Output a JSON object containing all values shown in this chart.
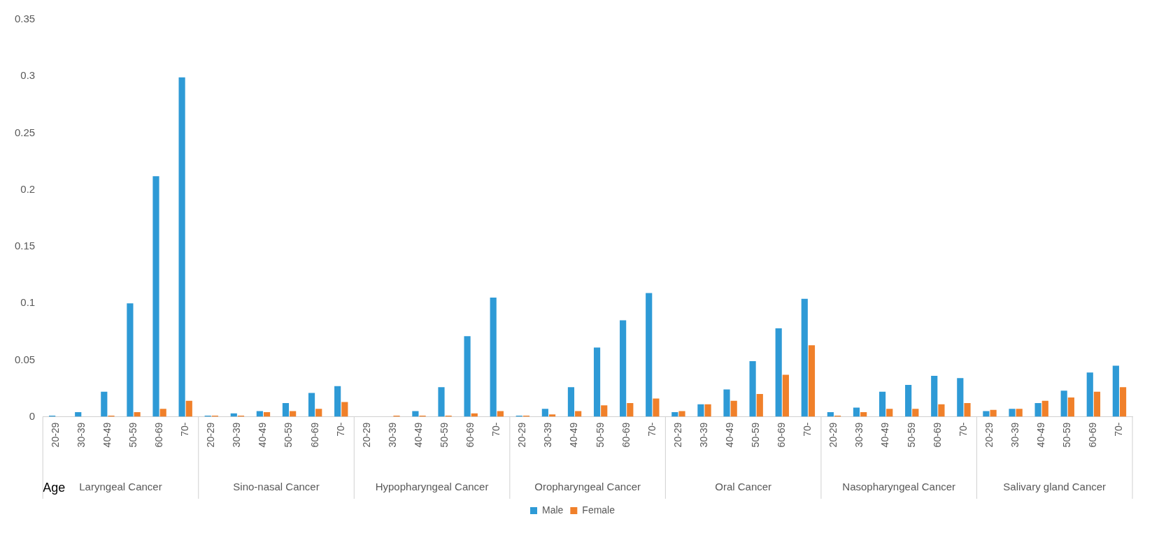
{
  "chart_data": {
    "type": "bar",
    "categories": [
      "20-29",
      "30-39",
      "40-49",
      "50-59",
      "60-69",
      "70-",
      "20-29",
      "30-39",
      "40-49",
      "50-59",
      "60-69",
      "70-",
      "20-29",
      "30-39",
      "40-49",
      "50-59",
      "60-69",
      "70-",
      "20-29",
      "30-39",
      "40-49",
      "50-59",
      "60-69",
      "70-",
      "20-29",
      "30-39",
      "40-49",
      "50-59",
      "60-69",
      "70-",
      "20-29",
      "30-39",
      "40-49",
      "50-59",
      "60-69",
      "70-",
      "20-29",
      "30-39",
      "40-49",
      "50-59",
      "60-69",
      "70-"
    ],
    "series": [
      {
        "name": "Male",
        "color": "#2e9ad6",
        "values": [
          0.001,
          0.004,
          0.022,
          0.1,
          0.212,
          0.299,
          0.001,
          0.003,
          0.005,
          0.012,
          0.021,
          0.027,
          0,
          0,
          0.005,
          0.026,
          0.071,
          0.105,
          0.001,
          0.007,
          0.026,
          0.061,
          0.085,
          0.109,
          0.004,
          0.011,
          0.024,
          0.049,
          0.078,
          0.104,
          0.004,
          0.008,
          0.022,
          0.028,
          0.036,
          0.034,
          0.005,
          0.007,
          0.012,
          0.023,
          0.039,
          0.045
        ]
      },
      {
        "name": "Female",
        "color": "#f0802a",
        "values": [
          0,
          0,
          0.001,
          0.004,
          0.007,
          0.014,
          0.001,
          0.001,
          0.004,
          0.005,
          0.007,
          0.013,
          0,
          0.001,
          0.001,
          0.001,
          0.003,
          0.005,
          0.001,
          0.002,
          0.005,
          0.01,
          0.012,
          0.016,
          0.005,
          0.011,
          0.014,
          0.02,
          0.037,
          0.063,
          0.001,
          0.004,
          0.007,
          0.007,
          0.011,
          0.012,
          0.006,
          0.007,
          0.014,
          0.017,
          0.022,
          0.026
        ]
      }
    ],
    "annotations": [
      "Laryngeal Cancer",
      "Sino-nasal Cancer",
      "Hypopharyngeal Cancer",
      "Oropharyngeal Cancer",
      "Oral Cancer",
      "Nasopharyngeal Cancer",
      "Salivary gland Cancer"
    ],
    "xlabel": "Age",
    "ylim": [
      0,
      0.35
    ],
    "yticks": [
      0,
      0.05,
      0.1,
      0.15,
      0.2,
      0.25,
      0.3,
      0.35
    ],
    "grid": false,
    "legend": "bottom"
  }
}
